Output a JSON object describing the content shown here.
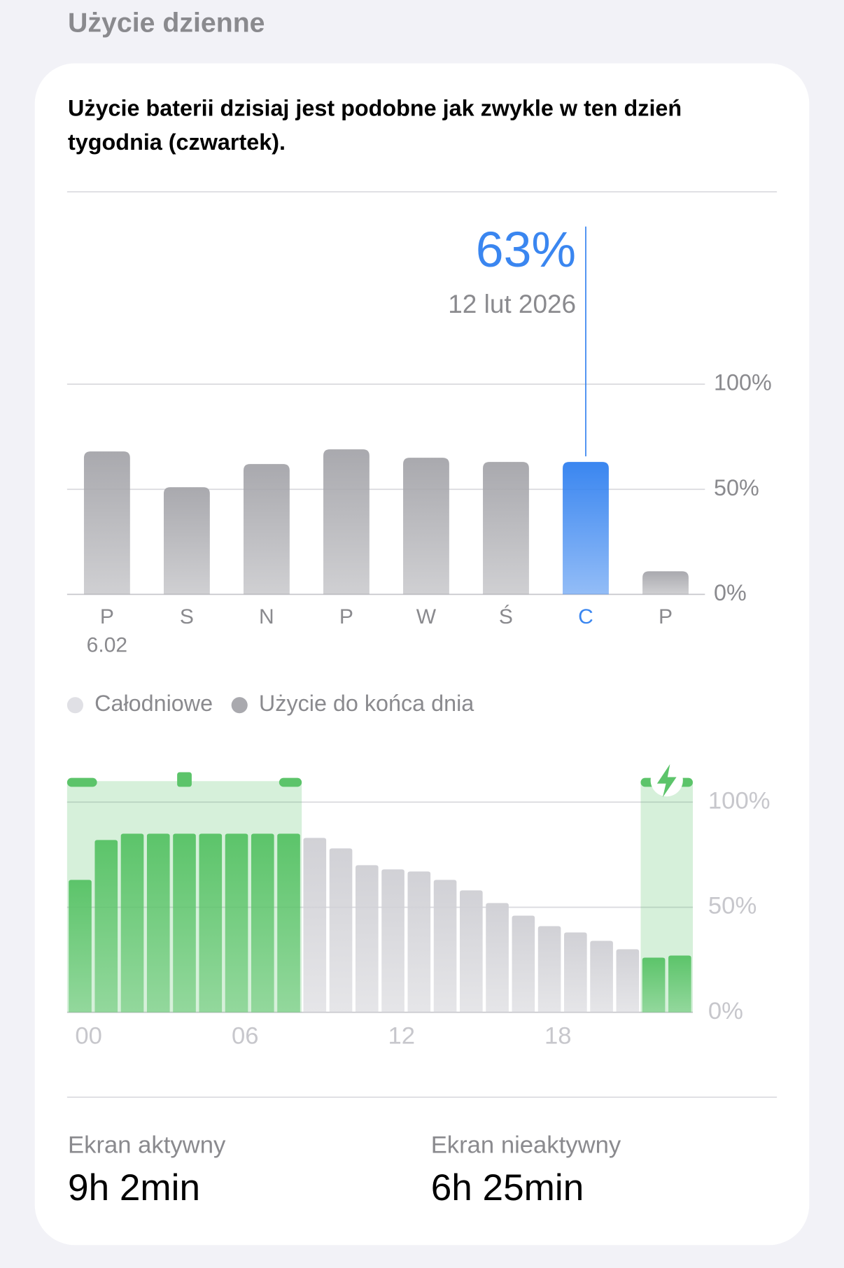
{
  "header": {
    "title": "Użycie dzienne"
  },
  "summary": "Użycie baterii dzisiaj jest podobne jak zwykle w ten dzień tygodnia (czwartek).",
  "chart_data": [
    {
      "type": "bar",
      "categories": [
        "P",
        "S",
        "N",
        "P",
        "W",
        "Ś",
        "C",
        "P"
      ],
      "category_sublabels": [
        "6.02",
        null,
        null,
        null,
        null,
        null,
        null,
        null
      ],
      "values": [
        68,
        51,
        62,
        69,
        65,
        63,
        63,
        11
      ],
      "value_labels": [
        null,
        null,
        null,
        null,
        null,
        null,
        "63%",
        null
      ],
      "annotation": "12 lut 2026",
      "bar_colors": [
        "#a9a9ae",
        "#a9a9ae",
        "#a9a9ae",
        "#a9a9ae",
        "#a9a9ae",
        "#a9a9ae",
        "#3a86f0",
        "#a9a9ae"
      ],
      "ylim": [
        0,
        100
      ],
      "yticks": [
        {
          "value": 0,
          "label": "0%"
        },
        {
          "value": 50,
          "label": "50%"
        },
        {
          "value": 100,
          "label": "100%"
        }
      ],
      "grid": true,
      "legend": [
        {
          "name": "Całodniowe",
          "color": "#e0e0e5"
        },
        {
          "name": "Użycie do końca dnia",
          "color": "#a9a9ae"
        }
      ]
    },
    {
      "type": "hourly-bar",
      "x": [
        0,
        1,
        2,
        3,
        4,
        5,
        6,
        7,
        8,
        9,
        10,
        11,
        12,
        13,
        14,
        15,
        16,
        17,
        18,
        19,
        20,
        21,
        22,
        23
      ],
      "values": [
        63,
        82,
        85,
        85,
        85,
        85,
        85,
        85,
        85,
        83,
        78,
        70,
        68,
        67,
        63,
        58,
        52,
        46,
        41,
        38,
        34,
        30,
        26,
        27
      ],
      "bar_colors": [
        "#5cc46a",
        "#5cc46a",
        "#5cc46a",
        "#5cc46a",
        "#5cc46a",
        "#5cc46a",
        "#5cc46a",
        "#5cc46a",
        "#5cc46a",
        "#d1d1d6",
        "#d1d1d6",
        "#d1d1d6",
        "#d1d1d6",
        "#d1d1d6",
        "#d1d1d6",
        "#d1d1d6",
        "#d1d1d6",
        "#d1d1d6",
        "#d1d1d6",
        "#d1d1d6",
        "#d1d1d6",
        "#d1d1d6",
        "#5cc46a",
        "#5cc46a"
      ],
      "xlim": [
        0,
        24
      ],
      "xticks": [
        {
          "value": 0,
          "label": "00"
        },
        {
          "value": 6,
          "label": "06"
        },
        {
          "value": 12,
          "label": "12"
        },
        {
          "value": 18,
          "label": "18"
        }
      ],
      "ylim": [
        0,
        100
      ],
      "yticks": [
        {
          "value": 0,
          "label": "0%"
        },
        {
          "value": 50,
          "label": "50%"
        },
        {
          "value": 100,
          "label": "100%"
        }
      ],
      "grid": true
    }
  ],
  "stats": [
    {
      "label": "Ekran aktywny",
      "value": "9h 2min"
    },
    {
      "label": "Ekran nieaktywny",
      "value": "6h 25min"
    }
  ]
}
